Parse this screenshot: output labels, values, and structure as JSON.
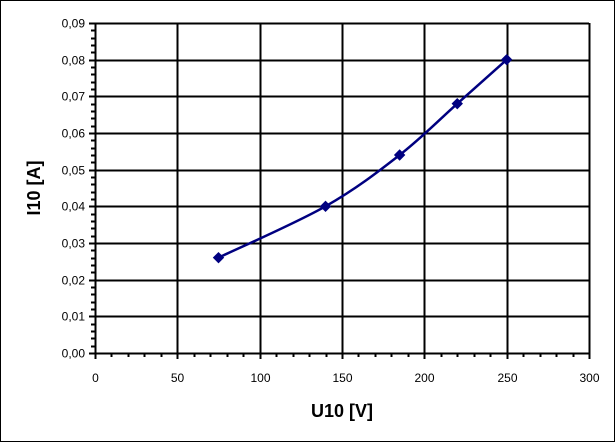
{
  "chart_data": {
    "type": "line",
    "title": "",
    "xlabel": "U10 [V]",
    "ylabel": "I10 [A]",
    "xlim": [
      0,
      300
    ],
    "ylim": [
      0,
      0.09
    ],
    "x_ticks": [
      0,
      50,
      100,
      150,
      200,
      250,
      300
    ],
    "x_tick_labels": [
      "0",
      "50",
      "100",
      "150",
      "200",
      "250",
      "300"
    ],
    "y_ticks": [
      0,
      0.01,
      0.02,
      0.03,
      0.04,
      0.05,
      0.06,
      0.07,
      0.08,
      0.09
    ],
    "y_tick_labels": [
      "0,00",
      "0,01",
      "0,02",
      "0,03",
      "0,04",
      "0,05",
      "0,06",
      "0,07",
      "0,08",
      "0,09"
    ],
    "grid": true,
    "legend": null,
    "series": [
      {
        "name": "I10",
        "color": "#000080",
        "marker": "diamond",
        "smooth": true,
        "x": [
          75,
          140,
          185,
          220,
          250
        ],
        "y": [
          0.026,
          0.04,
          0.054,
          0.068,
          0.08
        ]
      }
    ]
  }
}
